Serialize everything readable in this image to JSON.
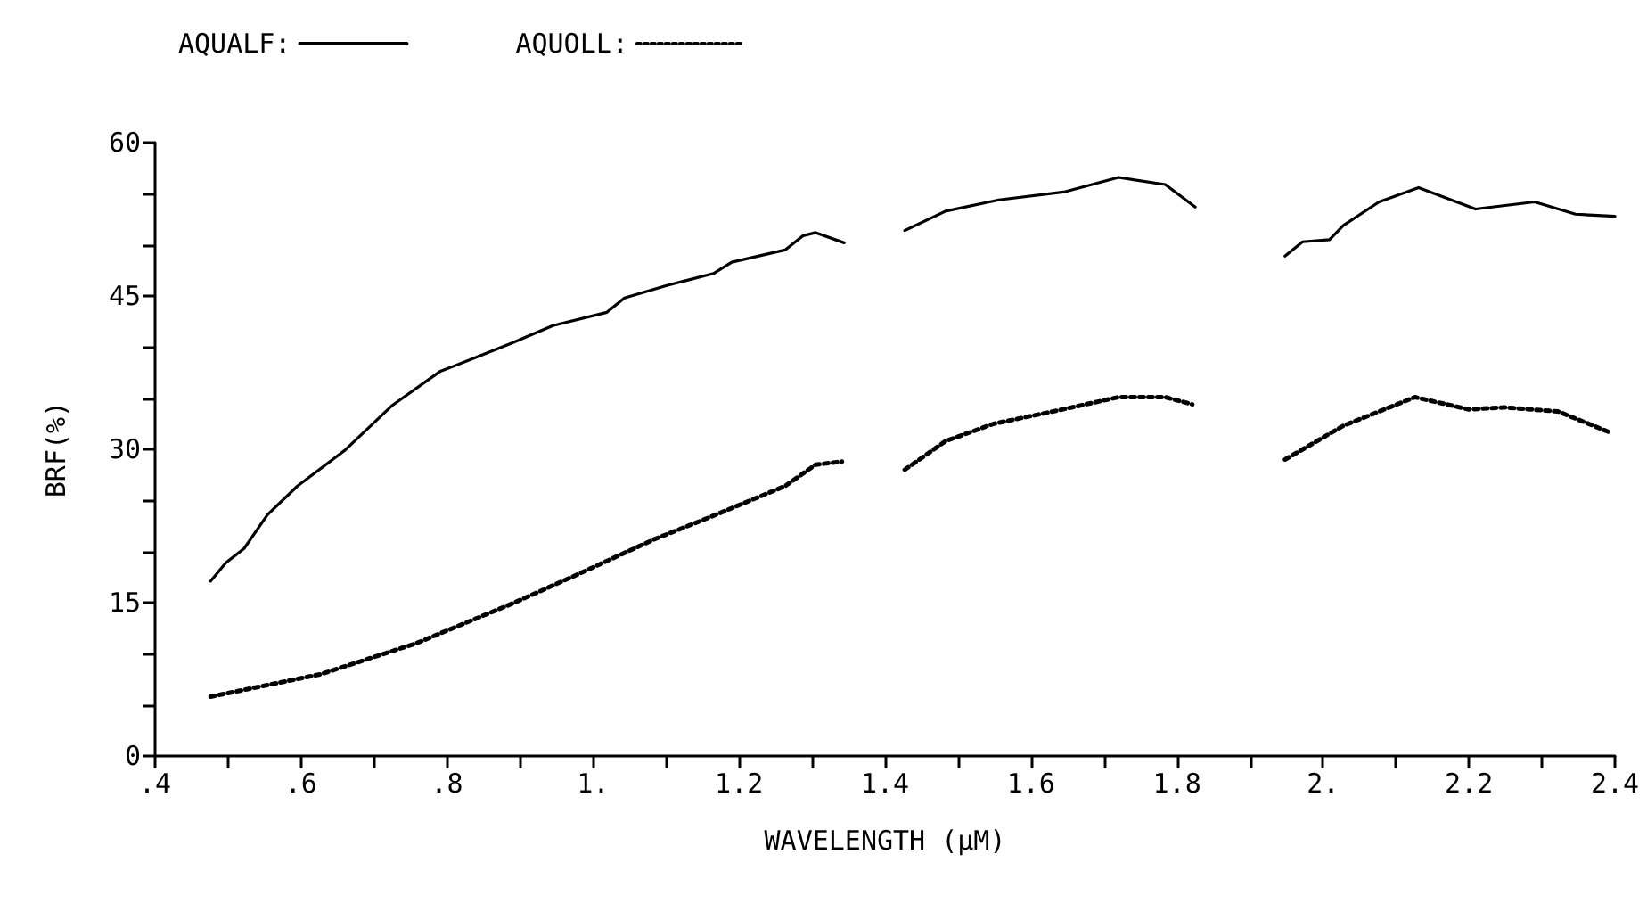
{
  "chart_data": {
    "type": "line",
    "xlabel": "WAVELENGTH (µM)",
    "ylabel": "BRF(%)",
    "legend": "top left",
    "grid": false,
    "marker": "none",
    "xlim": [
      0.4,
      2.4
    ],
    "ylim": [
      0,
      60
    ],
    "xticks": [
      {
        "value": 0.4,
        "label": ".4"
      },
      {
        "value": 0.5,
        "label": null
      },
      {
        "value": 0.6,
        "label": ".6"
      },
      {
        "value": 0.7,
        "label": null
      },
      {
        "value": 0.8,
        "label": ".8"
      },
      {
        "value": 0.9,
        "label": null
      },
      {
        "value": 1.0,
        "label": "1."
      },
      {
        "value": 1.1,
        "label": null
      },
      {
        "value": 1.2,
        "label": "1.2"
      },
      {
        "value": 1.3,
        "label": null
      },
      {
        "value": 1.4,
        "label": "1.4"
      },
      {
        "value": 1.5,
        "label": null
      },
      {
        "value": 1.6,
        "label": "1.6"
      },
      {
        "value": 1.7,
        "label": null
      },
      {
        "value": 1.8,
        "label": "1.8"
      },
      {
        "value": 1.9,
        "label": null
      },
      {
        "value": 2.0,
        "label": "2."
      },
      {
        "value": 2.1,
        "label": null
      },
      {
        "value": 2.2,
        "label": "2.2"
      },
      {
        "value": 2.3,
        "label": null
      },
      {
        "value": 2.4,
        "label": "2.4"
      }
    ],
    "yticks": [
      0,
      {
        "value": 5,
        "label": null
      },
      {
        "value": 10,
        "label": null
      },
      15,
      {
        "value": 20,
        "label": null
      },
      {
        "value": 25,
        "label": null
      },
      30,
      {
        "value": 35,
        "label": null
      },
      {
        "value": 40,
        "label": null
      },
      45,
      {
        "value": 50,
        "label": null
      },
      {
        "value": 55,
        "label": null
      },
      60
    ],
    "series": [
      {
        "name": "AQUALF:",
        "color": "#000000",
        "line_style": "solid",
        "x": [
          0.476,
          0.497,
          0.522,
          0.554,
          0.595,
          0.66,
          0.725,
          0.79,
          0.84,
          0.889,
          0.945,
          1.019,
          1.043,
          1.1,
          1.165,
          1.19,
          1.263,
          1.288,
          1.305,
          1.344,
          1.385,
          1.427,
          1.483,
          1.556,
          1.647,
          1.72,
          1.784,
          1.825,
          1.89,
          1.948,
          1.972,
          2.009,
          2.028,
          2.077,
          2.131,
          2.209,
          2.29,
          2.346,
          2.4
        ],
        "values": [
          17.1,
          18.9,
          20.3,
          23.6,
          26.4,
          29.9,
          34.3,
          37.6,
          39.0,
          40.4,
          42.1,
          43.4,
          44.8,
          46.0,
          47.2,
          48.3,
          49.5,
          50.9,
          51.2,
          50.2,
          null,
          51.4,
          53.3,
          54.4,
          55.2,
          56.6,
          55.9,
          53.7,
          null,
          48.9,
          50.3,
          50.5,
          51.9,
          54.2,
          55.6,
          53.5,
          54.2,
          53.0,
          52.8
        ]
      },
      {
        "name": "AQUOLL:",
        "color": "#000000",
        "line_style": "dotted",
        "x": [
          0.476,
          0.627,
          0.757,
          0.889,
          0.977,
          1.084,
          1.158,
          1.263,
          1.305,
          1.341,
          1.385,
          1.427,
          1.483,
          1.549,
          1.63,
          1.72,
          1.784,
          1.821,
          1.89,
          1.948,
          2.028,
          2.126,
          2.2,
          2.248,
          2.322,
          2.395
        ],
        "values": [
          5.8,
          8.0,
          11.0,
          14.9,
          17.7,
          21.2,
          23.3,
          26.4,
          28.5,
          28.8,
          null,
          28.0,
          30.8,
          32.5,
          33.7,
          35.1,
          35.1,
          34.4,
          null,
          29.0,
          32.3,
          35.1,
          33.9,
          34.1,
          33.7,
          31.6
        ]
      }
    ]
  }
}
